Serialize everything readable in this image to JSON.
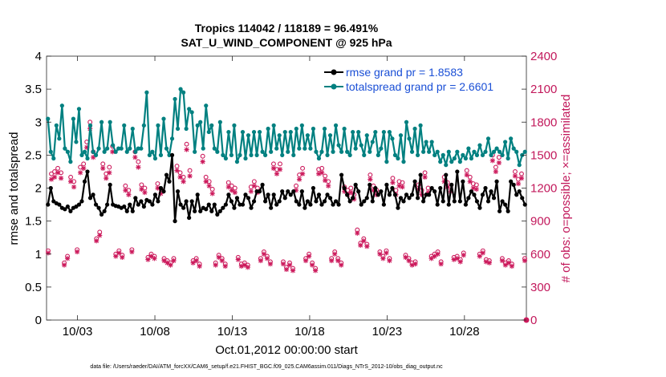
{
  "chart_data": {
    "type": "line",
    "title_line1": "Tropics 114042 / 118189 = 96.491%",
    "title_line2": "SAT_U_WIND_COMPONENT @ 925 hPa",
    "ylabel_left": "rmse and totalspread",
    "ylabel_right": "# of obs: o=possible; ×=assimilated",
    "xlabel": "Oct.01,2012 00:00:00 start",
    "footer": "data file: /Users/raeder/DAI/ATM_forcXX/CAM6_setup/f.e21.FHIST_BGC.f09_025.CAM6assim.011/Diags_NTrS_2012-10/obs_diag_output.nc",
    "x_ticks": [
      {
        "day": 3,
        "label": "10/03"
      },
      {
        "day": 8,
        "label": "10/08"
      },
      {
        "day": 13,
        "label": "10/13"
      },
      {
        "day": 18,
        "label": "10/18"
      },
      {
        "day": 23,
        "label": "10/23"
      },
      {
        "day": 28,
        "label": "10/28"
      }
    ],
    "xlim": [
      1,
      32
    ],
    "ylim_left": [
      0,
      4
    ],
    "yticks_left": [
      "0",
      "0.5",
      "1",
      "1.5",
      "2",
      "2.5",
      "3",
      "3.5",
      "4"
    ],
    "ylim_right": [
      0,
      2400
    ],
    "yticks_right": [
      "0",
      "300",
      "600",
      "900",
      "1200",
      "1500",
      "1800",
      "2100",
      "2400"
    ],
    "colors": {
      "rmse": "#000000",
      "spread": "#008080",
      "obs": "#cc1a5c",
      "legend_text": "#1a4fd6"
    },
    "series": [
      {
        "name": "rmse",
        "legend": "rmse grand pr = 1.8583",
        "values": [
          1.75,
          2.0,
          1.8,
          1.77,
          1.75,
          1.7,
          1.68,
          1.72,
          1.65,
          1.7,
          1.72,
          1.75,
          1.8,
          2.1,
          2.25,
          1.85,
          1.9,
          1.75,
          1.7,
          1.6,
          1.65,
          1.75,
          2.05,
          1.75,
          1.73,
          1.72,
          1.7,
          1.72,
          1.65,
          1.75,
          1.65,
          1.85,
          1.75,
          1.8,
          1.72,
          1.82,
          1.8,
          1.75,
          1.9,
          1.8,
          2.0,
          1.95,
          2.2,
          2.1,
          2.5,
          1.5,
          1.95,
          1.75,
          1.7,
          1.8,
          1.55,
          1.8,
          1.65,
          1.9,
          1.65,
          1.7,
          1.68,
          1.75,
          1.65,
          1.75,
          1.6,
          1.65,
          1.7,
          1.75,
          1.9,
          1.8,
          1.7,
          1.85,
          1.75,
          1.75,
          1.9,
          1.85,
          1.7,
          1.8,
          1.95,
          1.95,
          2.05,
          1.8,
          1.9,
          1.7,
          1.9,
          1.75,
          1.8,
          1.95,
          1.85,
          1.95,
          1.9,
          1.95,
          1.8,
          1.75,
          1.95,
          1.7,
          1.8,
          1.75,
          2.0,
          1.8,
          1.9,
          1.75,
          1.8,
          1.9,
          1.85,
          1.75,
          1.8,
          1.75,
          2.2,
          2.0,
          1.9,
          1.8,
          1.85,
          2.05,
          1.95,
          1.75,
          1.8,
          1.85,
          2.05,
          1.8,
          2.0,
          1.9,
          1.95,
          1.75,
          2.05,
          1.9,
          2.0,
          1.9,
          1.7,
          1.85,
          1.8,
          1.9,
          1.85,
          1.9,
          2.1,
          1.85,
          2.2,
          1.8,
          1.9,
          1.9,
          2.0,
          1.95,
          1.75,
          2.0,
          1.8,
          2.2,
          1.75,
          2.05,
          1.8,
          2.25,
          1.8,
          2.1,
          1.75,
          1.85,
          1.95,
          1.9,
          1.8,
          1.7,
          1.9,
          2.0,
          1.8,
          1.95,
          1.85,
          2.1,
          1.65,
          1.8,
          1.75,
          1.65,
          2.1,
          2.05,
          1.9,
          1.95,
          1.85,
          1.75
        ]
      },
      {
        "name": "totalspread",
        "legend": "totalspread grand pr = 2.6601",
        "values": [
          3.05,
          2.55,
          2.45,
          2.95,
          2.75,
          3.25,
          2.6,
          2.55,
          2.4,
          3.05,
          2.7,
          3.2,
          2.5,
          2.55,
          2.45,
          2.95,
          2.55,
          2.5,
          2.6,
          3.0,
          2.55,
          2.6,
          3.0,
          2.65,
          2.55,
          2.6,
          2.6,
          2.95,
          2.55,
          2.6,
          2.9,
          2.55,
          2.6,
          2.6,
          2.95,
          3.45,
          2.5,
          2.55,
          2.45,
          2.95,
          2.5,
          3.05,
          2.6,
          2.5,
          2.75,
          3.35,
          2.9,
          3.5,
          3.45,
          2.9,
          3.2,
          3.15,
          2.55,
          2.95,
          3.0,
          2.6,
          3.25,
          2.85,
          2.95,
          2.6,
          2.55,
          3.0,
          2.5,
          2.45,
          2.85,
          2.5,
          2.95,
          2.4,
          2.5,
          2.85,
          2.45,
          2.8,
          2.5,
          2.85,
          2.5,
          2.85,
          2.55,
          2.5,
          2.9,
          2.55,
          2.95,
          2.6,
          2.8,
          2.5,
          2.85,
          2.55,
          2.85,
          2.5,
          2.9,
          2.6,
          2.95,
          2.6,
          2.8,
          2.6,
          2.9,
          2.55,
          2.45,
          2.55,
          2.9,
          2.5,
          2.8,
          2.55,
          2.95,
          2.65,
          2.55,
          2.9,
          2.55,
          2.5,
          2.85,
          2.6,
          2.85,
          2.65,
          2.5,
          2.8,
          2.55,
          2.7,
          2.85,
          2.5,
          2.6,
          2.85,
          2.4,
          2.85,
          2.75,
          2.5,
          2.45,
          2.8,
          2.4,
          3.0,
          2.75,
          2.55,
          2.9,
          2.5,
          2.95,
          2.55,
          2.7,
          2.55,
          2.7,
          2.5,
          2.55,
          2.4,
          2.5,
          2.35,
          2.55,
          2.4,
          2.45,
          2.55,
          2.4,
          2.5,
          2.45,
          2.6,
          2.45,
          2.55,
          2.5,
          2.65,
          2.5,
          2.55,
          2.75,
          2.5,
          2.55,
          2.6,
          2.55,
          2.5,
          2.7,
          2.45,
          2.75,
          2.6,
          2.55,
          2.35,
          2.5,
          2.55
        ]
      },
      {
        "name": "obs_possible",
        "marker": "o",
        "axis": "right",
        "values": [
          630,
          1330,
          1350,
          1380,
          1340,
          520,
          580,
          1300,
          1260,
          640,
          1390,
          1420,
          1620,
          1800,
          1530,
          740,
          800,
          1420,
          1330,
          1390,
          1580,
          600,
          630,
          590,
          1220,
          1180,
          640,
          1530,
          1440,
          1230,
          1200,
          570,
          600,
          580,
          1240,
          1190,
          560,
          540,
          520,
          560,
          1400,
          1340,
          1300,
          1600,
          1360,
          540,
          560,
          510,
          1490,
          1300,
          1260,
          1190,
          520,
          590,
          560,
          510,
          1250,
          1220,
          1200,
          570,
          510,
          520,
          500,
          1210,
          1260,
          1200,
          560,
          620,
          580,
          530,
          1420,
          1370,
          1420,
          530,
          480,
          520,
          470,
          1220,
          1320,
          1380,
          560,
          600,
          520,
          470,
          1370,
          1380,
          1310,
          1260,
          560,
          620,
          560,
          520,
          1210,
          1180,
          1200,
          1140,
          820,
          700,
          740,
          690,
          1320,
          1220,
          1180,
          620,
          580,
          630,
          560,
          1290,
          1180,
          1260,
          1250,
          590,
          560,
          520,
          530,
          1230,
          1180,
          1340,
          1200,
          580,
          600,
          620,
          530,
          1300,
          1250,
          1210,
          570,
          580,
          550,
          610,
          1360,
          1300,
          1240,
          1230,
          600,
          630,
          550,
          540,
          1500,
          1390,
          1480,
          560,
          520,
          540,
          510,
          1350,
          1280,
          1330,
          560
        ]
      },
      {
        "name": "obs_assimilated",
        "marker": "x",
        "axis": "right",
        "values": [
          610,
          1280,
          1300,
          1340,
          1290,
          500,
          560,
          1260,
          1210,
          620,
          1340,
          1380,
          1570,
          1740,
          1480,
          720,
          770,
          1380,
          1290,
          1340,
          1530,
          580,
          610,
          570,
          1180,
          1140,
          620,
          1480,
          1390,
          1190,
          1160,
          550,
          580,
          560,
          1200,
          1150,
          540,
          520,
          500,
          540,
          1360,
          1300,
          1260,
          1550,
          1310,
          520,
          540,
          490,
          1440,
          1260,
          1220,
          1150,
          500,
          570,
          540,
          490,
          1210,
          1180,
          1160,
          550,
          490,
          500,
          480,
          1170,
          1220,
          1160,
          540,
          600,
          560,
          510,
          1380,
          1330,
          1370,
          510,
          460,
          500,
          450,
          1180,
          1280,
          1330,
          540,
          580,
          500,
          450,
          1330,
          1340,
          1270,
          1220,
          540,
          600,
          540,
          500,
          1170,
          1140,
          1160,
          1100,
          790,
          680,
          720,
          670,
          1280,
          1180,
          1140,
          600,
          560,
          610,
          540,
          1250,
          1140,
          1220,
          1210,
          570,
          540,
          500,
          510,
          1190,
          1140,
          1300,
          1160,
          560,
          580,
          600,
          510,
          1260,
          1210,
          1170,
          550,
          560,
          530,
          590,
          1320,
          1260,
          1200,
          1190,
          580,
          610,
          530,
          520,
          1450,
          1350,
          1430,
          540,
          500,
          520,
          490,
          1310,
          1240,
          1290,
          540
        ]
      }
    ]
  }
}
